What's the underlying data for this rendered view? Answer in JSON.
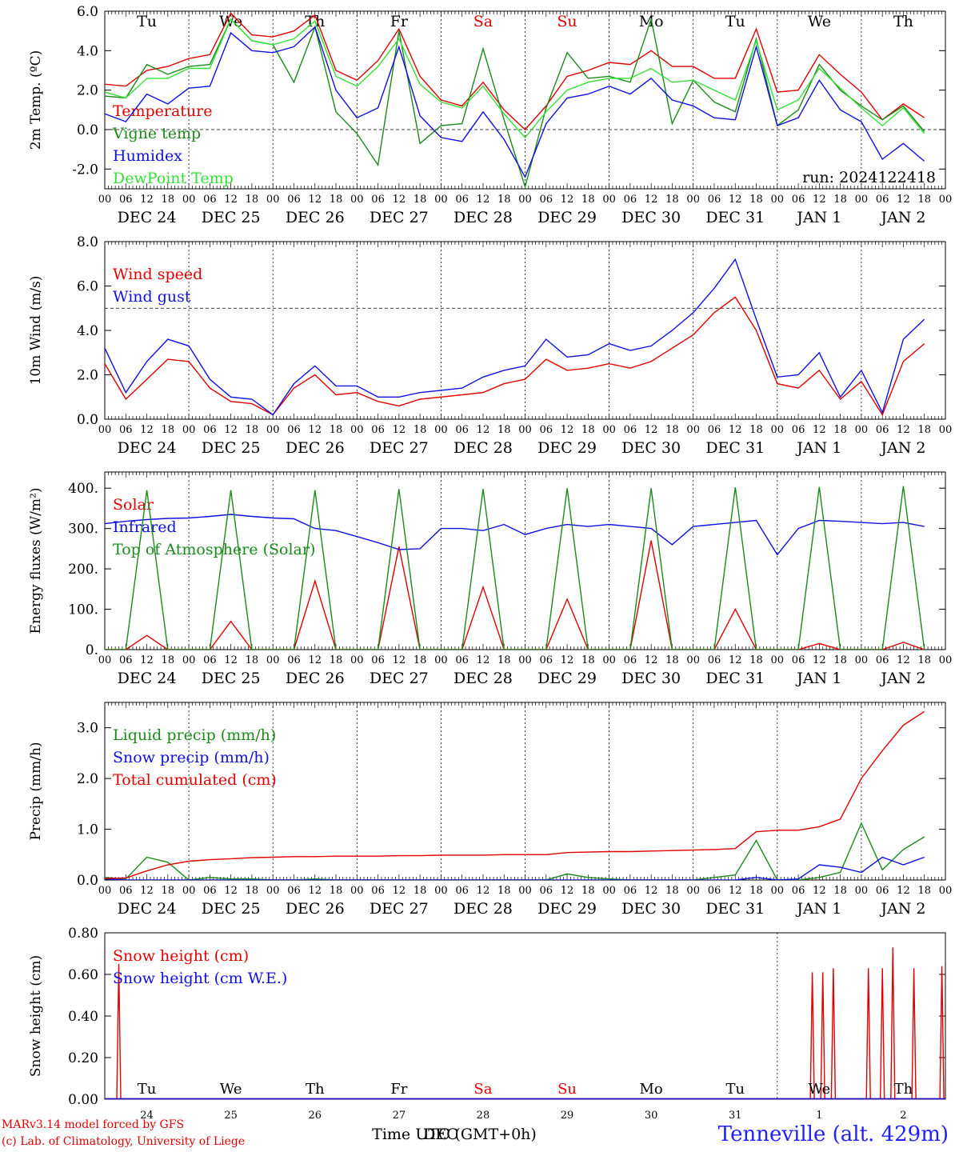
{
  "panel_colors": {
    "red": "#e00000",
    "green": "#1a8a1a",
    "blue": "#1010e0",
    "lightgreen": "#33e033"
  },
  "footer": {
    "credit_line1": "MARv3.14 model forced by GFS",
    "credit_line2": "(c) Lab. of Climatology, University of Liege",
    "station": "Tenneville (alt. 429m)",
    "x_title": "Time UTC (GMT+0h)",
    "x_title_overlay": "DEC"
  },
  "chart_data": [
    {
      "type": "line",
      "id": "temperature",
      "ylabel": "2m Temp. (ºC)",
      "ylim": [
        -3,
        6
      ],
      "yticks": [
        "-2.0",
        "0.0",
        "2.0",
        "4.0",
        "6.0"
      ],
      "ytick_values": [
        -2,
        0,
        2,
        4,
        6
      ],
      "zero_line": 0,
      "x_hours": [
        0,
        6,
        12,
        18,
        24,
        30,
        36,
        42,
        48,
        54,
        60,
        66,
        72,
        78,
        84,
        90,
        96,
        102,
        108,
        114,
        120,
        126,
        132,
        138,
        144,
        150,
        156,
        162,
        168,
        174,
        180,
        186,
        192,
        198,
        204,
        210,
        216,
        222,
        228,
        234
      ],
      "weekdays": [
        "Tu",
        "We",
        "Th",
        "Fr",
        "Sa",
        "Su",
        "Mo",
        "Tu",
        "We",
        "Th"
      ],
      "weekday_colors": [
        "black",
        "black",
        "black",
        "black",
        "red",
        "red",
        "black",
        "black",
        "black",
        "black"
      ],
      "day_labels": [
        "DEC 24",
        "DEC 25",
        "DEC 26",
        "DEC 27",
        "DEC 28",
        "DEC 29",
        "DEC 30",
        "DEC 31",
        "JAN  1",
        "JAN  2"
      ],
      "annotation": "run: 2024122418",
      "series": [
        {
          "name": "Temperature",
          "color": "red",
          "values": [
            2.3,
            2.2,
            3.0,
            3.2,
            3.6,
            3.8,
            5.9,
            4.8,
            4.7,
            5.0,
            5.8,
            3.0,
            2.5,
            3.5,
            5.1,
            2.7,
            1.5,
            1.2,
            2.4,
            1.0,
            0.0,
            1.2,
            2.7,
            3.0,
            3.4,
            3.3,
            4.0,
            3.2,
            3.2,
            2.6,
            2.6,
            5.1,
            1.9,
            2.0,
            3.8,
            2.8,
            1.9,
            0.5,
            1.3,
            0.6
          ]
        },
        {
          "name": "Vigne temp",
          "color": "green",
          "values": [
            1.7,
            1.6,
            3.3,
            2.8,
            3.2,
            3.3,
            5.6,
            4.5,
            4.3,
            2.4,
            5.2,
            0.9,
            -0.2,
            -1.8,
            5.0,
            -0.7,
            0.2,
            0.3,
            4.1,
            0.5,
            -2.9,
            1.1,
            3.9,
            2.6,
            2.7,
            2.4,
            5.6,
            0.3,
            2.5,
            1.4,
            0.9,
            4.6,
            0.2,
            1.0,
            3.3,
            2.0,
            1.2,
            0.5,
            1.2,
            -0.1
          ]
        },
        {
          "name": "Humidex",
          "color": "blue",
          "values": [
            0.8,
            0.4,
            1.8,
            1.3,
            2.1,
            2.2,
            4.9,
            4.0,
            3.9,
            4.2,
            5.2,
            2.0,
            0.6,
            1.1,
            4.2,
            0.7,
            -0.4,
            -0.6,
            0.9,
            -0.5,
            -2.4,
            0.3,
            1.6,
            1.8,
            2.2,
            1.8,
            2.6,
            1.5,
            1.2,
            0.6,
            0.5,
            4.2,
            0.2,
            0.6,
            2.5,
            1.0,
            0.4,
            -1.5,
            -0.7,
            -1.6
          ]
        },
        {
          "name": "DewPoint Temp",
          "color": "lightgreen",
          "values": [
            1.9,
            1.6,
            2.6,
            2.6,
            3.1,
            3.1,
            5.6,
            4.5,
            4.3,
            4.6,
            5.5,
            2.7,
            2.2,
            3.2,
            4.6,
            2.3,
            1.4,
            1.1,
            2.2,
            0.8,
            -0.4,
            0.9,
            2.0,
            2.4,
            2.6,
            2.6,
            3.1,
            2.4,
            2.5,
            2.0,
            1.5,
            4.5,
            1.0,
            1.5,
            3.1,
            2.1,
            1.1,
            0.2,
            1.1,
            -0.2
          ]
        }
      ]
    },
    {
      "type": "line",
      "id": "wind",
      "ylabel": "10m Wind (m/s)",
      "ylim": [
        0,
        8
      ],
      "yticks": [
        "0.0",
        "2.0",
        "4.0",
        "6.0",
        "8.0"
      ],
      "ytick_values": [
        0,
        2,
        4,
        6,
        8
      ],
      "ref_line": 5,
      "x_hours": [
        0,
        6,
        12,
        18,
        24,
        30,
        36,
        42,
        48,
        54,
        60,
        66,
        72,
        78,
        84,
        90,
        96,
        102,
        108,
        114,
        120,
        126,
        132,
        138,
        144,
        150,
        156,
        162,
        168,
        174,
        180,
        186,
        192,
        198,
        204,
        210,
        216,
        222,
        228,
        234
      ],
      "day_labels": [
        "DEC 24",
        "DEC 25",
        "DEC 26",
        "DEC 27",
        "DEC 28",
        "DEC 29",
        "DEC 30",
        "DEC 31",
        "JAN  1",
        "JAN  2"
      ],
      "series": [
        {
          "name": "Wind speed",
          "color": "red",
          "values": [
            2.5,
            0.9,
            1.8,
            2.7,
            2.6,
            1.4,
            0.8,
            0.7,
            0.2,
            1.4,
            2.0,
            1.1,
            1.2,
            0.8,
            0.6,
            0.9,
            1.0,
            1.1,
            1.2,
            1.6,
            1.8,
            2.7,
            2.2,
            2.3,
            2.5,
            2.3,
            2.6,
            3.2,
            3.8,
            4.8,
            5.5,
            4.0,
            1.6,
            1.4,
            2.2,
            0.9,
            1.7,
            0.2,
            2.6,
            3.4
          ]
        },
        {
          "name": "Wind gust",
          "color": "blue",
          "values": [
            3.2,
            1.2,
            2.6,
            3.6,
            3.3,
            1.8,
            1.0,
            0.9,
            0.2,
            1.6,
            2.4,
            1.5,
            1.5,
            1.0,
            1.0,
            1.2,
            1.3,
            1.4,
            1.9,
            2.2,
            2.4,
            3.6,
            2.8,
            2.9,
            3.4,
            3.1,
            3.3,
            4.0,
            4.8,
            5.9,
            7.2,
            4.5,
            1.9,
            2.0,
            3.0,
            1.0,
            2.2,
            0.3,
            3.6,
            4.5
          ]
        }
      ]
    },
    {
      "type": "line",
      "id": "energy",
      "ylabel": "Energy fluxes (W/m²)",
      "ylim": [
        0,
        440
      ],
      "yticks": [
        "0.",
        "100.",
        "200.",
        "300.",
        "400."
      ],
      "ytick_values": [
        0,
        100,
        200,
        300,
        400
      ],
      "x_hours": [
        0,
        6,
        12,
        18,
        24,
        30,
        36,
        42,
        48,
        54,
        60,
        66,
        72,
        78,
        84,
        90,
        96,
        102,
        108,
        114,
        120,
        126,
        132,
        138,
        144,
        150,
        156,
        162,
        168,
        174,
        180,
        186,
        192,
        198,
        204,
        210,
        216,
        222,
        228,
        234
      ],
      "day_labels": [
        "DEC 24",
        "DEC 25",
        "DEC 26",
        "DEC 27",
        "DEC 28",
        "DEC 29",
        "DEC 30",
        "DEC 31",
        "JAN  1",
        "JAN  2"
      ],
      "series": [
        {
          "name": "Solar",
          "color": "red",
          "values": [
            0,
            0,
            35,
            0,
            0,
            0,
            70,
            0,
            0,
            0,
            170,
            0,
            0,
            0,
            255,
            0,
            0,
            0,
            155,
            0,
            0,
            0,
            125,
            0,
            0,
            0,
            270,
            0,
            0,
            0,
            100,
            0,
            0,
            0,
            15,
            0,
            0,
            0,
            18,
            0
          ]
        },
        {
          "name": "Infrared",
          "color": "blue",
          "values": [
            312,
            318,
            322,
            325,
            326,
            330,
            335,
            330,
            326,
            324,
            300,
            295,
            280,
            265,
            248,
            250,
            300,
            300,
            295,
            310,
            285,
            300,
            310,
            305,
            310,
            305,
            300,
            260,
            305,
            310,
            315,
            320,
            235,
            300,
            320,
            318,
            315,
            312,
            315,
            305
          ]
        },
        {
          "name": "Top of Atmosphere (Solar)",
          "color": "green",
          "values": [
            0,
            0,
            395,
            0,
            0,
            0,
            395,
            0,
            0,
            0,
            395,
            0,
            0,
            0,
            398,
            0,
            0,
            0,
            398,
            0,
            0,
            0,
            400,
            0,
            0,
            0,
            400,
            0,
            0,
            0,
            402,
            0,
            0,
            0,
            403,
            0,
            0,
            0,
            405,
            0
          ]
        }
      ]
    },
    {
      "type": "line",
      "id": "precip",
      "ylabel": "Precip (mm/h)",
      "ylim": [
        0,
        3.5
      ],
      "yticks": [
        "0.0",
        "1.0",
        "2.0",
        "3.0"
      ],
      "ytick_values": [
        0,
        1,
        2,
        3
      ],
      "x_hours": [
        0,
        6,
        12,
        18,
        24,
        30,
        36,
        42,
        48,
        54,
        60,
        66,
        72,
        78,
        84,
        90,
        96,
        102,
        108,
        114,
        120,
        126,
        132,
        138,
        144,
        150,
        156,
        162,
        168,
        174,
        180,
        186,
        192,
        198,
        204,
        210,
        216,
        222,
        228,
        234
      ],
      "day_labels": [
        "DEC 24",
        "DEC 25",
        "DEC 26",
        "DEC 27",
        "DEC 28",
        "DEC 29",
        "DEC 30",
        "DEC 31",
        "JAN  1",
        "JAN  2"
      ],
      "series": [
        {
          "name": "Liquid precip (mm/h)",
          "color": "green",
          "values": [
            0.05,
            0.02,
            0.45,
            0.35,
            0.0,
            0.05,
            0.02,
            0.02,
            0.0,
            0.0,
            0.02,
            0.0,
            0.0,
            0.0,
            0.0,
            0.0,
            0.0,
            0.0,
            0.0,
            0.0,
            0.0,
            0.0,
            0.12,
            0.05,
            0.02,
            0.0,
            0.0,
            0.0,
            0.0,
            0.05,
            0.1,
            0.78,
            0.0,
            0.0,
            0.05,
            0.15,
            1.12,
            0.2,
            0.6,
            0.85
          ]
        },
        {
          "name": "Snow precip (mm/h)",
          "color": "blue",
          "values": [
            0.02,
            0.0,
            0.0,
            0.0,
            0.0,
            0.0,
            0.0,
            0.0,
            0.0,
            0.0,
            0.0,
            0.0,
            0.0,
            0.0,
            0.0,
            0.0,
            0.0,
            0.0,
            0.0,
            0.0,
            0.0,
            0.0,
            0.0,
            0.0,
            0.0,
            0.0,
            0.0,
            0.0,
            0.0,
            0.0,
            0.0,
            0.05,
            0.0,
            0.02,
            0.3,
            0.25,
            0.15,
            0.45,
            0.3,
            0.45
          ]
        },
        {
          "name": "Total cumulated (cm)",
          "color": "red",
          "values": [
            0.03,
            0.04,
            0.18,
            0.3,
            0.37,
            0.4,
            0.42,
            0.44,
            0.45,
            0.46,
            0.46,
            0.47,
            0.47,
            0.47,
            0.48,
            0.48,
            0.49,
            0.49,
            0.49,
            0.5,
            0.5,
            0.5,
            0.54,
            0.55,
            0.56,
            0.56,
            0.57,
            0.58,
            0.59,
            0.6,
            0.62,
            0.95,
            0.98,
            0.98,
            1.05,
            1.2,
            2.0,
            2.55,
            3.05,
            3.32
          ]
        }
      ]
    },
    {
      "type": "line",
      "id": "snow",
      "ylabel": "Snow height (cm)",
      "ylim": [
        0,
        0.8
      ],
      "yticks": [
        "0.00",
        "0.20",
        "0.40",
        "0.60",
        "0.80"
      ],
      "ytick_values": [
        0,
        0.2,
        0.4,
        0.6,
        0.8
      ],
      "weekdays": [
        "Tu",
        "We",
        "Th",
        "Fr",
        "Sa",
        "Su",
        "Mo",
        "Tu",
        "We",
        "Th"
      ],
      "weekday_colors": [
        "black",
        "black",
        "black",
        "black",
        "red",
        "red",
        "black",
        "black",
        "black",
        "black"
      ],
      "day_numbers": [
        "24",
        "25",
        "26",
        "27",
        "28",
        "29",
        "30",
        "31",
        "1",
        "2"
      ],
      "series": [
        {
          "name": "Snow height (cm)",
          "color": "red",
          "spikes": [
            [
              4,
              0.65
            ],
            [
              202,
              0.61
            ],
            [
              205,
              0.61
            ],
            [
              208,
              0.63
            ],
            [
              218,
              0.63
            ],
            [
              222,
              0.63
            ],
            [
              225,
              0.73
            ],
            [
              231,
              0.63
            ],
            [
              239,
              0.64
            ]
          ]
        },
        {
          "name": "Snow height (cm W.E.)",
          "color": "blue",
          "spikes": []
        }
      ]
    }
  ]
}
